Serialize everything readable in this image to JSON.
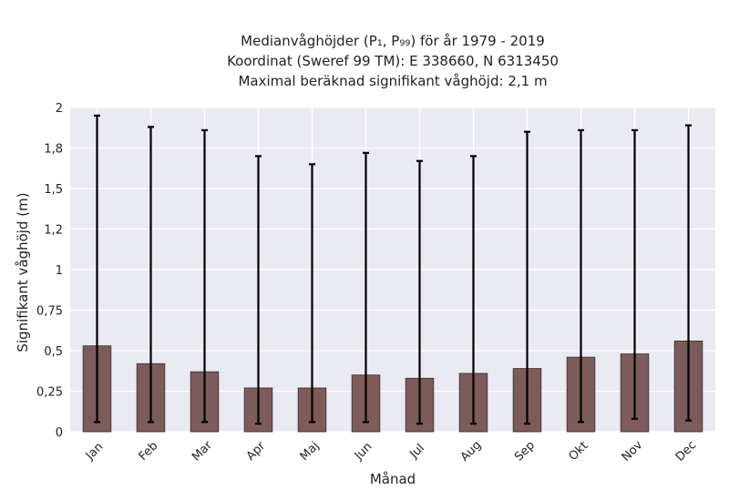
{
  "chart_data": {
    "type": "bar",
    "title_lines": [
      "Medianvåghöjder (P₁, P₉₉) för år 1979 - 2019",
      "Koordinat (Sweref 99 TM): E 338660, N 6313450",
      "Maximal beräknad signifikant våghöjd: 2,1 m"
    ],
    "xlabel": "Månad",
    "ylabel": "Signifikant våghöjd (m)",
    "categories": [
      "Jan",
      "Feb",
      "Mar",
      "Apr",
      "Maj",
      "Jun",
      "Jul",
      "Aug",
      "Sep",
      "Okt",
      "Nov",
      "Dec"
    ],
    "values": [
      0.53,
      0.42,
      0.37,
      0.27,
      0.27,
      0.35,
      0.33,
      0.36,
      0.39,
      0.46,
      0.48,
      0.56
    ],
    "p1": [
      0.06,
      0.06,
      0.06,
      0.05,
      0.06,
      0.06,
      0.05,
      0.05,
      0.05,
      0.06,
      0.08,
      0.07
    ],
    "p99": [
      1.95,
      1.88,
      1.86,
      1.7,
      1.65,
      1.72,
      1.67,
      1.7,
      1.85,
      1.86,
      1.86,
      1.89
    ],
    "ylim": [
      0,
      2
    ],
    "yticks": [
      0,
      0.25,
      0.5,
      0.75,
      1,
      1.25,
      1.5,
      1.75,
      2
    ],
    "ytick_labels": [
      "0",
      "0,25",
      "0,5",
      "0,75",
      "1",
      "1,2",
      "1,5",
      "1,8",
      "2"
    ],
    "grid": true,
    "colors": {
      "bar": "#7d5b5b",
      "bar_edge": "#3a2a2a",
      "errorbar": "#000000",
      "plot_bg": "#eaeaf2",
      "grid": "#ffffff"
    }
  }
}
